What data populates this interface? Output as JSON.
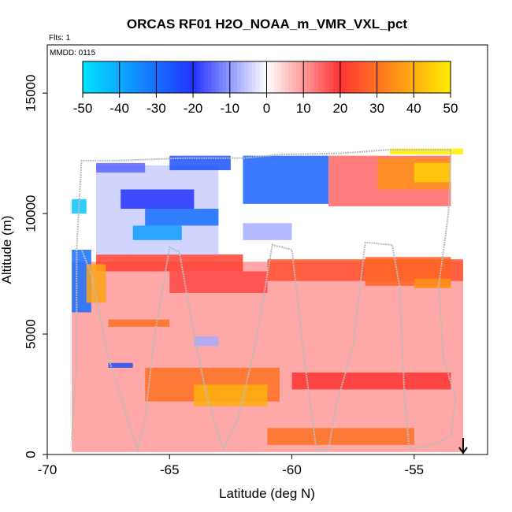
{
  "chart_data": {
    "type": "heatmap",
    "title": "ORCAS RF01 H2O_NOAA_m_VMR_VXL_pct",
    "annotations": [
      "Flts: 1",
      "MMDD: 0115"
    ],
    "xlabel": "Latitude (deg N)",
    "ylabel": "Altitude (m)",
    "xlim": [
      -70,
      -52
    ],
    "ylim": [
      0,
      17000
    ],
    "x_ticks": [
      -70,
      -65,
      -60,
      -55
    ],
    "y_ticks": [
      0,
      5000,
      10000,
      15000
    ],
    "x_tick_labels": [
      "-70",
      "-65",
      "-60",
      "-55"
    ],
    "y_tick_labels": [
      "0",
      "5000",
      "10000",
      "15000"
    ],
    "colorbar": {
      "min": -50,
      "max": 50,
      "ticks": [
        -50,
        -40,
        -30,
        -20,
        -10,
        0,
        10,
        20,
        30,
        40,
        50
      ],
      "tick_labels": [
        "-50",
        "-40",
        "-30",
        "-20",
        "-10",
        "0",
        "10",
        "20",
        "30",
        "40",
        "50"
      ],
      "colors": {
        "low": "#00e5ff",
        "mid_low": "#2233ff",
        "zero": "#ffffff",
        "mid_high": "#ff3333",
        "high": "#ffee00"
      }
    },
    "grid": false,
    "legend": "none",
    "marker": {
      "shape": "arrow-down",
      "x": -53.0,
      "y": 0
    },
    "regions": [
      {
        "x": [
          -69.0,
          -53.0
        ],
        "y": [
          100,
          8000
        ],
        "value": 10
      },
      {
        "x": [
          -61.0,
          -53.0
        ],
        "y": [
          7200,
          8100
        ],
        "value": 25
      },
      {
        "x": [
          -68.0,
          -62.0
        ],
        "y": [
          7600,
          8300
        ],
        "value": 22
      },
      {
        "x": [
          -65.0,
          -61.0
        ],
        "y": [
          6700,
          7600
        ],
        "value": 18
      },
      {
        "x": [
          -66.0,
          -60.5
        ],
        "y": [
          2200,
          3600
        ],
        "value": 30
      },
      {
        "x": [
          -64.0,
          -61.0
        ],
        "y": [
          2000,
          2900
        ],
        "value": 40
      },
      {
        "x": [
          -67.5,
          -65.0
        ],
        "y": [
          5300,
          5600
        ],
        "value": 30
      },
      {
        "x": [
          -61.0,
          -55.0
        ],
        "y": [
          400,
          1100
        ],
        "value": 30
      },
      {
        "x": [
          -57.0,
          -53.5
        ],
        "y": [
          7000,
          8200
        ],
        "value": 28
      },
      {
        "x": [
          -55.0,
          -53.5
        ],
        "y": [
          6900,
          7300
        ],
        "value": 35
      },
      {
        "x": [
          -60.0,
          -53.5
        ],
        "y": [
          2700,
          3400
        ],
        "value": 20
      },
      {
        "x": [
          -68.0,
          -63.0
        ],
        "y": [
          8300,
          12000
        ],
        "value": -5
      },
      {
        "x": [
          -66.0,
          -63.0
        ],
        "y": [
          9500,
          10200
        ],
        "value": -30
      },
      {
        "x": [
          -67.0,
          -64.0
        ],
        "y": [
          10200,
          11000
        ],
        "value": -20
      },
      {
        "x": [
          -66.5,
          -64.5
        ],
        "y": [
          8900,
          9500
        ],
        "value": -38
      },
      {
        "x": [
          -68.0,
          -66.0
        ],
        "y": [
          11700,
          12100
        ],
        "value": -15
      },
      {
        "x": [
          -62.0,
          -58.5
        ],
        "y": [
          10400,
          12400
        ],
        "value": -28
      },
      {
        "x": [
          -65.0,
          -62.5
        ],
        "y": [
          11800,
          12400
        ],
        "value": -25
      },
      {
        "x": [
          -58.5,
          -53.5
        ],
        "y": [
          10300,
          12400
        ],
        "value": 15
      },
      {
        "x": [
          -56.5,
          -53.5
        ],
        "y": [
          11000,
          12300
        ],
        "value": 35
      },
      {
        "x": [
          -55.0,
          -53.5
        ],
        "y": [
          11300,
          12100
        ],
        "value": 45
      },
      {
        "x": [
          -56.0,
          -53.0
        ],
        "y": [
          12450,
          12700
        ],
        "value": 50
      },
      {
        "x": [
          -62.0,
          -60.0
        ],
        "y": [
          8900,
          9600
        ],
        "value": -8
      },
      {
        "x": [
          -69.0,
          -68.2
        ],
        "y": [
          5900,
          8500
        ],
        "value": -30
      },
      {
        "x": [
          -68.4,
          -67.6
        ],
        "y": [
          6300,
          7900
        ],
        "value": 38
      },
      {
        "x": [
          -67.5,
          -66.5
        ],
        "y": [
          3600,
          3800
        ],
        "value": -25
      },
      {
        "x": [
          -64.0,
          -63.0
        ],
        "y": [
          4500,
          4900
        ],
        "value": -8
      },
      {
        "x": [
          -69.0,
          -68.4
        ],
        "y": [
          10000,
          10600
        ],
        "value": -45
      }
    ],
    "flight_track": [
      [
        -69.0,
        600
      ],
      [
        -68.8,
        4000
      ],
      [
        -68.8,
        8500
      ],
      [
        -68.6,
        12200
      ],
      [
        -67.0,
        12200
      ],
      [
        -64.5,
        12300
      ],
      [
        -62.0,
        12300
      ],
      [
        -60.5,
        12450
      ],
      [
        -58.0,
        12500
      ],
      [
        -56.0,
        12650
      ],
      [
        -53.5,
        12650
      ],
      [
        -53.6,
        10000
      ],
      [
        -54.0,
        7000
      ],
      [
        -53.8,
        4000
      ],
      [
        -53.3,
        2300
      ],
      [
        -53.5,
        800
      ],
      [
        -54.0,
        500
      ],
      [
        -55.2,
        200
      ],
      [
        -55.4,
        2500
      ],
      [
        -55.6,
        7000
      ],
      [
        -55.9,
        8700
      ],
      [
        -57.0,
        8800
      ],
      [
        -57.5,
        4500
      ],
      [
        -58.2,
        2000
      ],
      [
        -58.5,
        200
      ],
      [
        -59.0,
        200
      ],
      [
        -59.5,
        4000
      ],
      [
        -60.0,
        8500
      ],
      [
        -60.8,
        8700
      ],
      [
        -61.5,
        4500
      ],
      [
        -62.2,
        1500
      ],
      [
        -62.8,
        200
      ],
      [
        -63.5,
        2500
      ],
      [
        -64.0,
        5000
      ],
      [
        -64.6,
        8400
      ],
      [
        -65.0,
        8600
      ],
      [
        -65.6,
        5000
      ],
      [
        -66.0,
        1500
      ],
      [
        -66.3,
        200
      ],
      [
        -67.5,
        4000
      ],
      [
        -68.2,
        7500
      ],
      [
        -68.6,
        8500
      ]
    ]
  }
}
